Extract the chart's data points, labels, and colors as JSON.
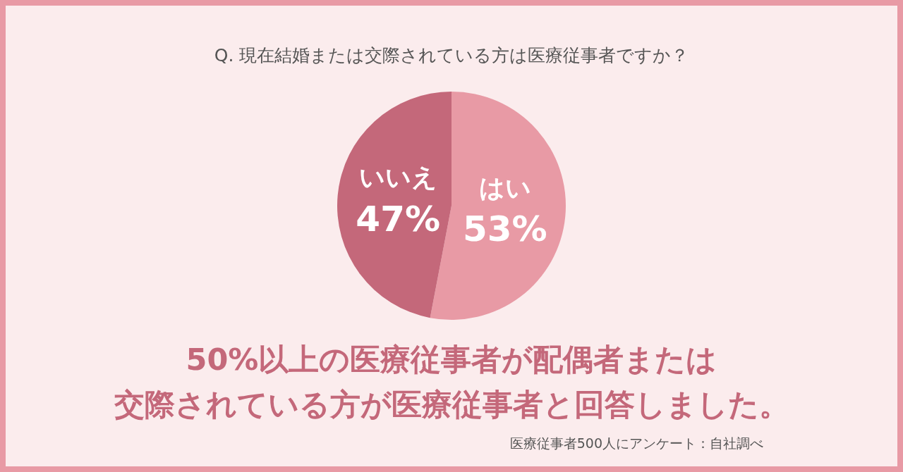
{
  "chart_data": {
    "type": "pie",
    "title": "Q. 現在結婚または交際されている方は医療従事者ですか？",
    "categories": [
      "はい",
      "いいえ"
    ],
    "values": [
      53,
      47
    ],
    "value_labels": [
      "53%",
      "47%"
    ],
    "colors": [
      "#e89aa5",
      "#c4687a"
    ],
    "legend": false,
    "annotations": [
      "50%以上の医療従事者が配偶者または",
      "交際されている方が医療従事者と回答しました。",
      "医療従事者500人にアンケート：自社調べ"
    ]
  }
}
